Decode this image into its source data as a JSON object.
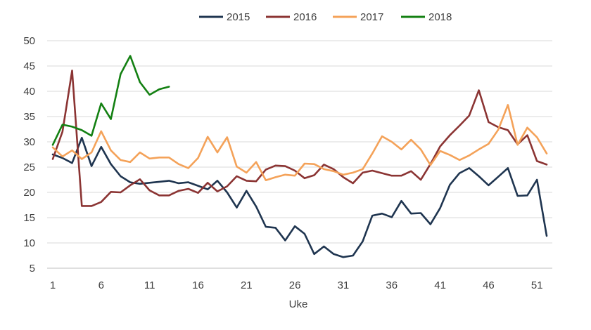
{
  "chart_data": {
    "type": "line",
    "title": "",
    "xlabel": "Uke",
    "ylabel": "",
    "xlim": [
      1,
      52
    ],
    "ylim": [
      5,
      50
    ],
    "x_ticks": [
      1,
      6,
      11,
      16,
      21,
      26,
      31,
      36,
      41,
      46,
      51
    ],
    "y_ticks": [
      5,
      10,
      15,
      20,
      25,
      30,
      35,
      40,
      45,
      50
    ],
    "grid": "horizontal",
    "legend": "top",
    "series": [
      {
        "name": "2015",
        "color": "#1f3550",
        "x": [
          1,
          2,
          3,
          4,
          5,
          6,
          7,
          8,
          9,
          10,
          11,
          12,
          13,
          14,
          15,
          16,
          17,
          18,
          19,
          20,
          21,
          22,
          23,
          24,
          25,
          26,
          27,
          28,
          29,
          30,
          31,
          32,
          33,
          34,
          35,
          36,
          37,
          38,
          39,
          40,
          41,
          42,
          43,
          44,
          45,
          46,
          47,
          48,
          49,
          50,
          51,
          52
        ],
        "values": [
          27.5,
          26.8,
          25.8,
          30.8,
          25.2,
          29.0,
          25.6,
          23.2,
          22.0,
          21.7,
          21.9,
          22.1,
          22.3,
          21.8,
          22.0,
          21.3,
          20.6,
          22.3,
          20.0,
          17.0,
          20.3,
          17.2,
          13.2,
          13.0,
          10.5,
          13.3,
          11.8,
          7.8,
          9.3,
          7.8,
          7.2,
          7.5,
          10.3,
          15.4,
          15.8,
          15.1,
          18.3,
          15.8,
          15.9,
          13.7,
          16.9,
          21.5,
          23.8,
          24.8,
          23.2,
          21.4,
          23.1,
          24.8,
          19.3,
          19.4,
          22.5,
          11.4
        ]
      },
      {
        "name": "2016",
        "color": "#8b3433",
        "x": [
          1,
          2,
          3,
          4,
          5,
          6,
          7,
          8,
          9,
          10,
          11,
          12,
          13,
          14,
          15,
          16,
          17,
          18,
          19,
          20,
          21,
          22,
          23,
          24,
          25,
          26,
          27,
          28,
          29,
          30,
          31,
          32,
          33,
          34,
          35,
          36,
          37,
          38,
          39,
          40,
          41,
          42,
          43,
          44,
          45,
          46,
          47,
          48,
          49,
          50,
          51,
          52
        ],
        "values": [
          26.6,
          32.0,
          44.1,
          17.3,
          17.3,
          18.1,
          20.1,
          20.0,
          21.4,
          22.6,
          20.4,
          19.4,
          19.4,
          20.3,
          20.7,
          19.9,
          21.9,
          20.2,
          21.2,
          23.2,
          22.3,
          22.2,
          24.5,
          25.3,
          25.2,
          24.3,
          22.8,
          23.4,
          25.5,
          24.6,
          23.0,
          21.8,
          23.9,
          24.3,
          23.8,
          23.3,
          23.3,
          24.2,
          22.5,
          25.6,
          29.1,
          31.3,
          33.2,
          35.2,
          40.2,
          33.9,
          32.9,
          32.3,
          29.5,
          31.3,
          26.2,
          25.5
        ]
      },
      {
        "name": "2017",
        "color": "#f4a259",
        "x": [
          1,
          2,
          3,
          4,
          5,
          6,
          7,
          8,
          9,
          10,
          11,
          12,
          13,
          14,
          15,
          16,
          17,
          18,
          19,
          20,
          21,
          22,
          23,
          24,
          25,
          26,
          27,
          28,
          29,
          30,
          31,
          32,
          33,
          34,
          35,
          36,
          37,
          38,
          39,
          40,
          41,
          42,
          43,
          44,
          45,
          46,
          47,
          48,
          49,
          50,
          51,
          52
        ],
        "values": [
          28.9,
          27.1,
          28.3,
          26.6,
          27.9,
          32.1,
          28.3,
          26.4,
          26.0,
          27.9,
          26.7,
          26.9,
          26.9,
          25.6,
          24.8,
          26.8,
          31.0,
          27.9,
          30.9,
          25.1,
          23.9,
          26.0,
          22.4,
          23.0,
          23.5,
          23.3,
          25.7,
          25.6,
          24.6,
          24.2,
          23.5,
          23.9,
          24.6,
          27.7,
          31.1,
          30.0,
          28.5,
          30.4,
          28.5,
          25.4,
          28.2,
          27.4,
          26.4,
          27.3,
          28.5,
          29.6,
          32.4,
          37.3,
          29.4,
          32.8,
          30.9,
          27.7
        ]
      },
      {
        "name": "2018",
        "color": "#138012",
        "x": [
          1,
          2,
          3,
          4,
          5,
          6,
          7,
          8,
          9,
          10,
          11,
          12,
          13
        ],
        "values": [
          29.4,
          33.4,
          33.0,
          32.3,
          31.2,
          37.6,
          34.5,
          43.4,
          47.0,
          41.8,
          39.3,
          40.4,
          40.9
        ]
      }
    ]
  }
}
